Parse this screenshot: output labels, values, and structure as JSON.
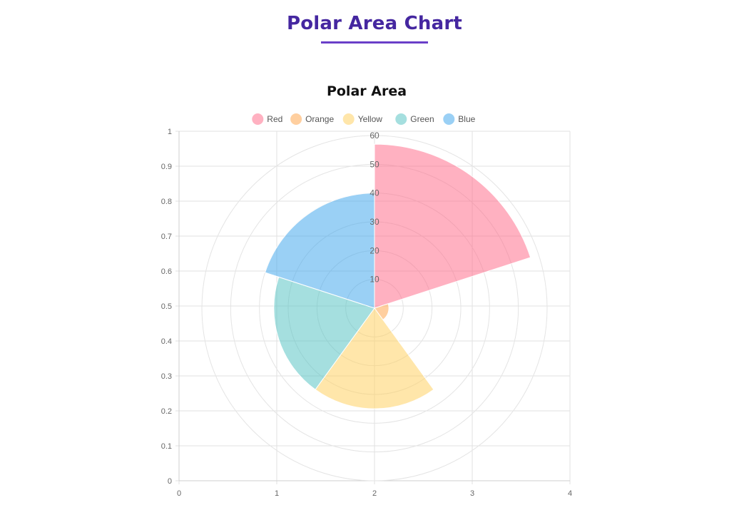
{
  "header": {
    "title": "Polar Area Chart"
  },
  "chart_data": {
    "type": "polar-area",
    "title": "Polar Area",
    "legend_position": "top",
    "categories": [
      "Red",
      "Orange",
      "Yellow",
      "Green",
      "Blue"
    ],
    "values": [
      57,
      5,
      35,
      35,
      40
    ],
    "colors": [
      "#ff6384",
      "#ff9f40",
      "#ffcd56",
      "#4bc0c0",
      "#36a2eb"
    ],
    "fill_opacity": 0.5,
    "r_axis": {
      "min": 0,
      "max": 60,
      "ticks": [
        10,
        20,
        30,
        40,
        50,
        60
      ]
    },
    "x_axis": {
      "min": 0,
      "max": 4,
      "ticks": [
        0,
        1,
        2,
        3,
        4
      ]
    },
    "y_axis": {
      "min": 0,
      "max": 1,
      "ticks": [
        0,
        0.1,
        0.2,
        0.3,
        0.4,
        0.5,
        0.6,
        0.7,
        0.8,
        0.9,
        1
      ]
    },
    "grid": true
  }
}
